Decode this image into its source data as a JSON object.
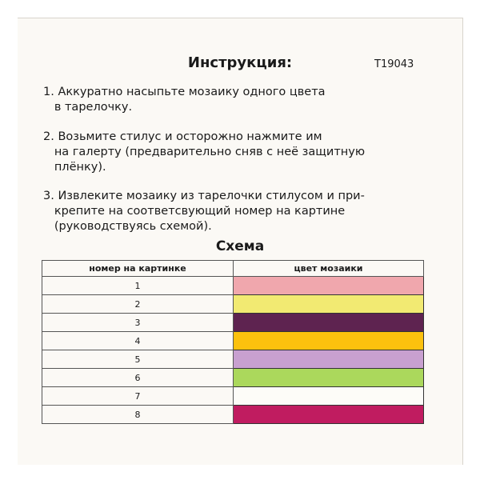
{
  "title": "Инструкция:",
  "code": "T19043",
  "steps": [
    "1. Аккуратно насыпьте мозаику одного цвета\n   в тарелочку.",
    "2. Возьмите стилус и осторожно нажмите им\n   на галерту (предварительно сняв с неё защитную\n   плёнку).",
    "3. Извлеките мозаику из тарелочки стилусом и при-\n   крепите на соответсвующий номер на картине\n   (руководствуясь схемой)."
  ],
  "schema_title": "Схема",
  "table": {
    "headers": [
      "номер на картинке",
      "цвет мозаики"
    ],
    "rows": [
      {
        "number": "1",
        "color": "#f0a7ad"
      },
      {
        "number": "2",
        "color": "#f2ea72"
      },
      {
        "number": "3",
        "color": "#5e2350"
      },
      {
        "number": "4",
        "color": "#fcc10e"
      },
      {
        "number": "5",
        "color": "#c8a0d0"
      },
      {
        "number": "6",
        "color": "#abd85c"
      },
      {
        "number": "7",
        "color": "#fdfcf8"
      },
      {
        "number": "8",
        "color": "#c01c60"
      }
    ]
  }
}
